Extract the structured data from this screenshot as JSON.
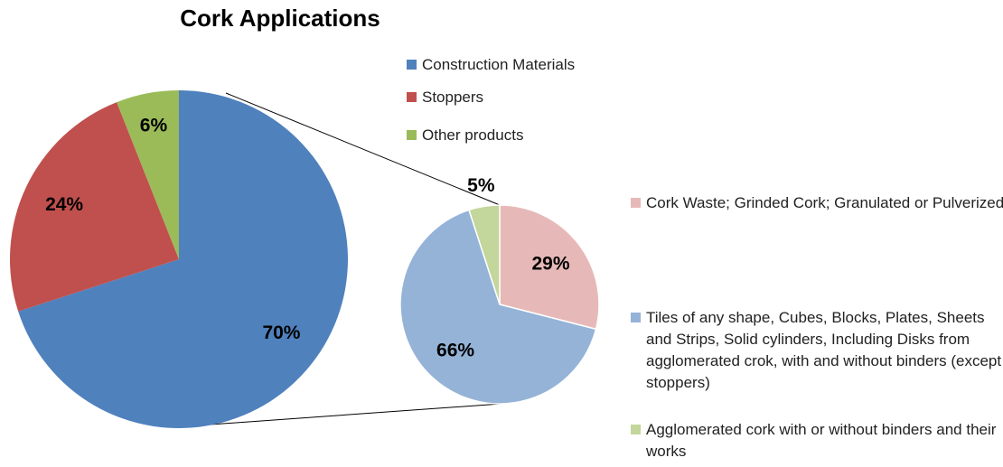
{
  "chart_data": [
    {
      "type": "pie",
      "title": "Cork Applications",
      "categories": [
        "Construction Materials",
        "Stoppers",
        "Other products"
      ],
      "values": [
        70,
        24,
        6
      ],
      "value_labels": [
        "70%",
        "24%",
        "6%"
      ],
      "colors": [
        "#4f81bd",
        "#c0504d",
        "#9bbb59"
      ]
    },
    {
      "type": "pie",
      "categories": [
        "Cork Waste; Grinded Cork; Granulated or Pulverized",
        "Tiles of any shape, Cubes, Blocks, Plates, Sheets and Strips, Solid cylinders, Including Disks from agglomerated crok, with and without binders (except stoppers)",
        "Agglomerated cork with or without binders and their works"
      ],
      "values": [
        29,
        66,
        5
      ],
      "value_labels": [
        "29%",
        "66%",
        "5%"
      ],
      "colors": [
        "#e6b9b8",
        "#95b3d7",
        "#c3d69b"
      ]
    }
  ]
}
